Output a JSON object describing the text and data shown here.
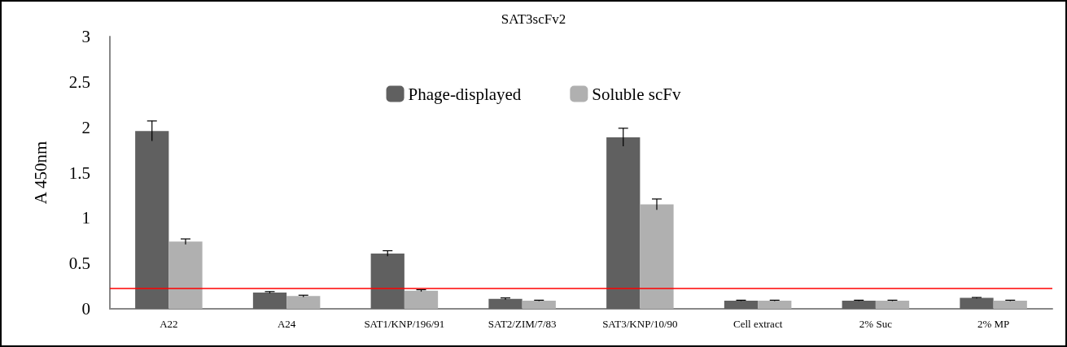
{
  "chart_data": {
    "type": "bar",
    "title": "SAT3scFv2",
    "ylabel": "A 450nm",
    "categories": [
      "A22",
      "A24",
      "SAT1/KNP/196/91",
      "SAT2/ZIM/7/83",
      "SAT3/KNP/10/90",
      "Cell extract",
      "2% Suc",
      "2% MP"
    ],
    "series": [
      {
        "name": "Phage-displayed",
        "color": "#606060",
        "values": [
          1.96,
          0.18,
          0.61,
          0.11,
          1.89,
          0.09,
          0.09,
          0.12
        ],
        "errors": [
          0.11,
          0.01,
          0.03,
          0.01,
          0.1,
          0.005,
          0.005,
          0.005
        ]
      },
      {
        "name": "Soluble scFv",
        "color": "#b0b0b0",
        "values": [
          0.74,
          0.14,
          0.2,
          0.09,
          1.15,
          0.09,
          0.09,
          0.09
        ],
        "errors": [
          0.03,
          0.01,
          0.01,
          0.005,
          0.06,
          0.005,
          0.005,
          0.005
        ]
      }
    ],
    "ylim": [
      0,
      3
    ],
    "yticks": [
      0,
      0.5,
      1,
      1.5,
      2,
      2.5,
      3
    ],
    "grid": false,
    "legend": "top",
    "ref_lines": [
      {
        "axis": "y",
        "value": 0.23,
        "color": "#ff0000"
      }
    ]
  }
}
